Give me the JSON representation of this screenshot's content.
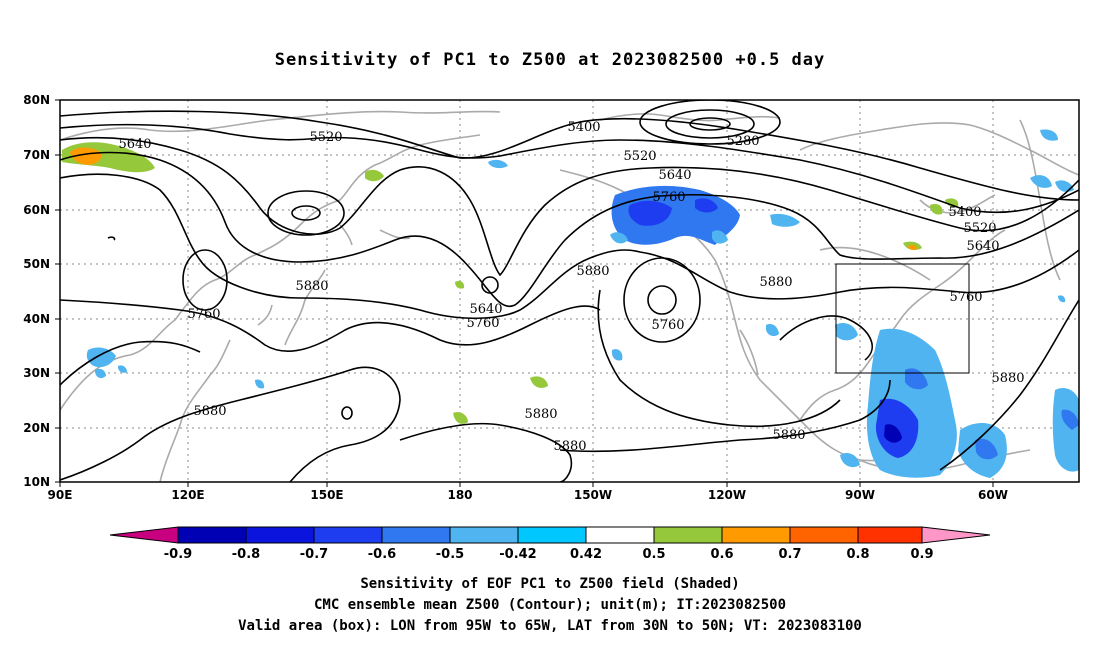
{
  "title": "Sensitivity of PC1 to Z500 at 2023082500 +0.5 day",
  "map": {
    "lat_labels": [
      "80N",
      "70N",
      "60N",
      "50N",
      "40N",
      "30N",
      "20N",
      "10N"
    ],
    "lon_labels": [
      "90E",
      "120E",
      "150E",
      "180",
      "150W",
      "120W",
      "90W",
      "60W"
    ],
    "contour_labels": [
      {
        "text": "5640"
      },
      {
        "text": "5520"
      },
      {
        "text": "5400"
      },
      {
        "text": "5280"
      },
      {
        "text": "5520"
      },
      {
        "text": "5640"
      },
      {
        "text": "5760"
      },
      {
        "text": "5400"
      },
      {
        "text": "5520"
      },
      {
        "text": "5640"
      },
      {
        "text": "5760"
      },
      {
        "text": "5880"
      },
      {
        "text": "5760"
      },
      {
        "text": "5880"
      },
      {
        "text": "5640"
      },
      {
        "text": "5760"
      },
      {
        "text": "5880"
      },
      {
        "text": "5760"
      },
      {
        "text": "5880"
      },
      {
        "text": "5880"
      },
      {
        "text": "5880"
      },
      {
        "text": "5880"
      },
      {
        "text": "5880"
      }
    ],
    "colors": {
      "land": "#aaaaaa",
      "contour": "#000000",
      "grid": "#888888"
    }
  },
  "colorbar": {
    "ticks": [
      "-0.9",
      "-0.8",
      "-0.7",
      "-0.6",
      "-0.5",
      "-0.42",
      "0.42",
      "0.5",
      "0.6",
      "0.7",
      "0.8",
      "0.9"
    ],
    "colors": [
      "#c8007f",
      "#0000b4",
      "#0a14dc",
      "#1e3cf0",
      "#2f78f0",
      "#4fb4f0",
      "#00c8ff",
      "#ffffff",
      "#96c83c",
      "#ff9b00",
      "#ff6400",
      "#ff3200",
      "#ff0000",
      "#ff96c8"
    ]
  },
  "captions": [
    "Sensitivity of EOF PC1 to Z500 field (Shaded)",
    "CMC ensemble mean Z500 (Contour); unit(m); IT:2023082500",
    "Valid area (box): LON from 95W to 65W, LAT from 30N to 50N; VT: 2023083100"
  ]
}
